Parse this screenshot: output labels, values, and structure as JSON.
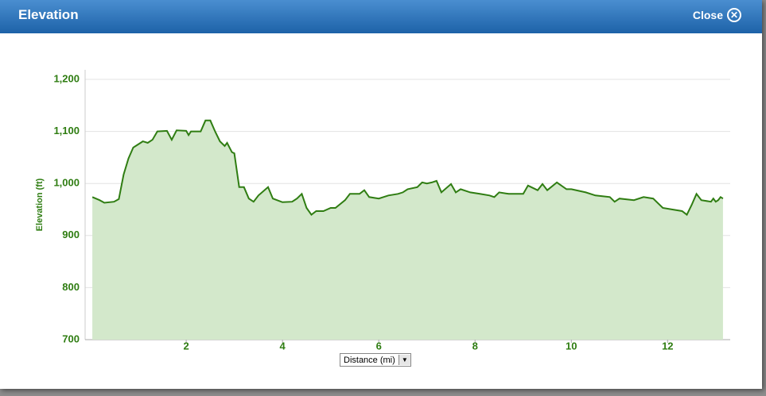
{
  "header": {
    "title": "Elevation",
    "close": "Close"
  },
  "chart_data": {
    "type": "area",
    "y_label": "Elevation (ft)",
    "x_label": "Distance (mi)",
    "color": "#2f7d12",
    "fill": "#d3e8cb",
    "grid": true,
    "xlim": [
      -0.1,
      13.3
    ],
    "ylim": [
      700,
      1200
    ],
    "xticks": [
      2,
      4,
      6,
      8,
      10,
      12
    ],
    "yticks": [
      700,
      800,
      900,
      {
        "value": 1000,
        "label": "1,000"
      },
      {
        "value": 1100,
        "label": "1,100"
      },
      {
        "value": 1200,
        "label": "1,200"
      }
    ],
    "series": [
      {
        "name": "Elevation",
        "x": [
          0.05,
          0.2,
          0.3,
          0.5,
          0.6,
          0.7,
          0.8,
          0.9,
          1.0,
          1.1,
          1.2,
          1.3,
          1.4,
          1.6,
          1.7,
          1.8,
          2.0,
          2.05,
          2.1,
          2.3,
          2.4,
          2.5,
          2.6,
          2.7,
          2.8,
          2.85,
          2.95,
          3.0,
          3.1,
          3.2,
          3.3,
          3.4,
          3.5,
          3.7,
          3.8,
          4.0,
          4.2,
          4.3,
          4.4,
          4.5,
          4.6,
          4.7,
          4.85,
          5.0,
          5.1,
          5.3,
          5.4,
          5.6,
          5.7,
          5.8,
          6.0,
          6.2,
          6.4,
          6.5,
          6.6,
          6.8,
          6.9,
          7.0,
          7.1,
          7.2,
          7.3,
          7.5,
          7.6,
          7.7,
          7.9,
          8.1,
          8.3,
          8.4,
          8.5,
          8.7,
          9.0,
          9.1,
          9.3,
          9.4,
          9.5,
          9.7,
          9.9,
          10.0,
          10.3,
          10.5,
          10.8,
          10.9,
          11.0,
          11.3,
          11.5,
          11.7,
          11.9,
          12.1,
          12.3,
          12.4,
          12.5,
          12.6,
          12.7,
          12.9,
          12.95,
          13.0,
          13.05,
          13.1,
          13.15
        ],
        "values": [
          974,
          968,
          963,
          965,
          970,
          1017,
          1048,
          1069,
          1075,
          1081,
          1078,
          1084,
          1100,
          1101,
          1084,
          1102,
          1101,
          1093,
          1100,
          1100,
          1121,
          1121,
          1100,
          1081,
          1072,
          1078,
          1060,
          1058,
          993,
          993,
          971,
          965,
          977,
          993,
          971,
          964,
          965,
          971,
          980,
          953,
          940,
          947,
          947,
          953,
          953,
          968,
          980,
          980,
          987,
          974,
          971,
          977,
          980,
          983,
          989,
          993,
          1002,
          1000,
          1002,
          1005,
          983,
          999,
          983,
          989,
          983,
          980,
          977,
          974,
          983,
          980,
          980,
          996,
          987,
          999,
          987,
          1002,
          989,
          989,
          983,
          977,
          974,
          965,
          971,
          968,
          974,
          971,
          953,
          950,
          947,
          940,
          959,
          980,
          968,
          965,
          971,
          965,
          968,
          974,
          971
        ]
      }
    ]
  }
}
